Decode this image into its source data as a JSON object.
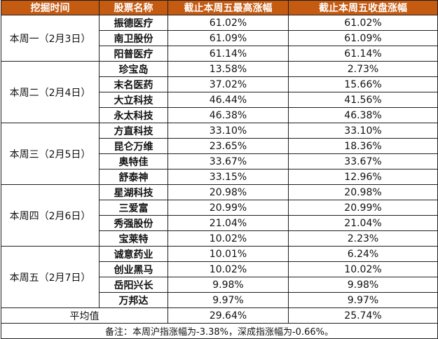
{
  "headers": [
    "挖掘时间",
    "股票名称",
    "截止本周五最高涨幅",
    "截止本周五收盘涨幅"
  ],
  "groups": [
    {
      "day": "本周一（2月3日）",
      "rows": [
        {
          "stock": "振德医疗",
          "high": "61.02%",
          "close": "61.02%"
        },
        {
          "stock": "南卫股份",
          "high": "61.09%",
          "close": "61.09%"
        },
        {
          "stock": "阳普医疗",
          "high": "61.14%",
          "close": "61.14%"
        }
      ]
    },
    {
      "day": "本周二（2月4日）",
      "rows": [
        {
          "stock": "珍宝岛",
          "high": "13.58%",
          "close": "2.73%"
        },
        {
          "stock": "末名医药",
          "high": "37.02%",
          "close": "15.66%"
        },
        {
          "stock": "大立科技",
          "high": "46.44%",
          "close": "41.56%"
        },
        {
          "stock": "永太科技",
          "high": "46.38%",
          "close": "46.38%"
        }
      ]
    },
    {
      "day": "本周三（2月5日）",
      "rows": [
        {
          "stock": "方直科技",
          "high": "33.10%",
          "close": "33.10%"
        },
        {
          "stock": "昆仑万维",
          "high": "23.65%",
          "close": "18.36%"
        },
        {
          "stock": "奥特佳",
          "high": "33.67%",
          "close": "33.67%"
        },
        {
          "stock": "舒泰神",
          "high": "33.15%",
          "close": "12.96%"
        }
      ]
    },
    {
      "day": "本周四（2月6日）",
      "rows": [
        {
          "stock": "星湖科技",
          "high": "20.98%",
          "close": "20.98%"
        },
        {
          "stock": "三爱富",
          "high": "20.99%",
          "close": "20.99%"
        },
        {
          "stock": "秀强股份",
          "high": "21.04%",
          "close": "21.04%"
        },
        {
          "stock": "宝莱特",
          "high": "10.02%",
          "close": "2.23%"
        }
      ]
    },
    {
      "day": "本周五（2月7日）",
      "rows": [
        {
          "stock": "诚意药业",
          "high": "10.01%",
          "close": "6.24%"
        },
        {
          "stock": "创业黑马",
          "high": "10.02%",
          "close": "10.02%"
        },
        {
          "stock": "岳阳兴长",
          "high": "9.98%",
          "close": "9.98%"
        },
        {
          "stock": "万邦达",
          "high": "9.97%",
          "close": "9.97%"
        }
      ]
    }
  ],
  "average": {
    "label": "平均值",
    "high": "29.64%",
    "close": "25.74%"
  },
  "note": "备注：本周沪指涨幅为-3.38%，深成指涨幅为-0.66%。"
}
